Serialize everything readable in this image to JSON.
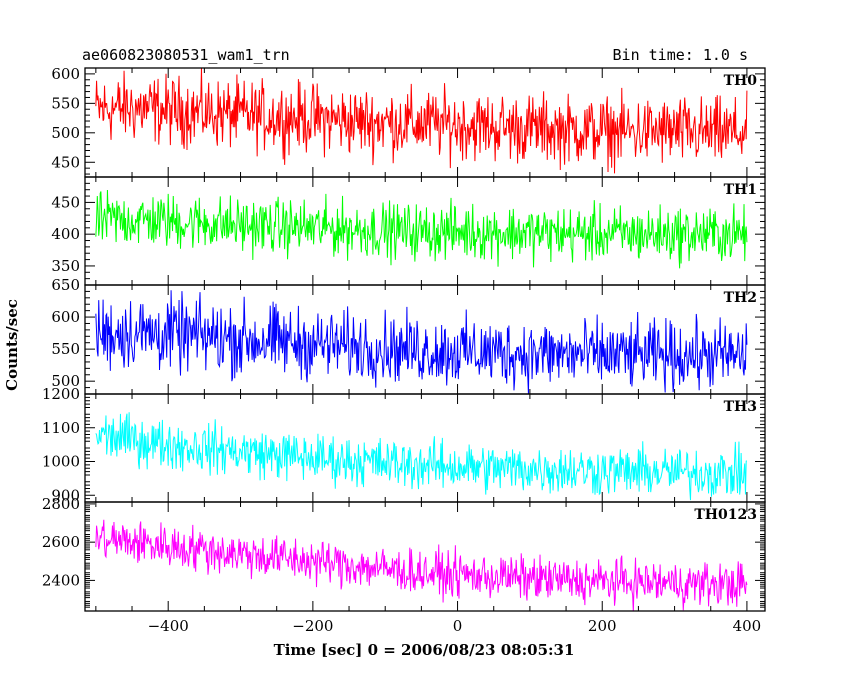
{
  "header": {
    "left": "ae060823080531_wam1_trn",
    "right": "Bin time: 1.0 s"
  },
  "chart_data": {
    "type": "line",
    "xlabel": "Time [sec] 0 = 2006/08/23 08:05:31",
    "ylabel": "Counts/sec",
    "xlim": [
      -515,
      425
    ],
    "xticks": [
      -400,
      -200,
      0,
      200,
      400
    ],
    "series": [
      {
        "name": "TH0",
        "color": "#ff0000",
        "ylim": [
          425,
          610
        ],
        "yticks": [
          450,
          500,
          550,
          600
        ],
        "x": [
          -500,
          -450,
          -400,
          -350,
          -300,
          -250,
          -200,
          -150,
          -100,
          -50,
          0,
          50,
          100,
          150,
          200,
          250,
          300,
          350,
          400
        ],
        "mean": [
          540,
          542,
          538,
          535,
          530,
          527,
          525,
          520,
          518,
          515,
          514,
          510,
          508,
          505,
          503,
          502,
          502,
          500,
          500
        ],
        "amp": [
          60,
          60,
          60,
          60,
          60,
          60,
          60,
          60,
          60,
          60,
          60,
          60,
          60,
          60,
          60,
          60,
          60,
          60,
          60
        ]
      },
      {
        "name": "TH1",
        "color": "#00ff00",
        "ylim": [
          320,
          490
        ],
        "yticks": [
          350,
          400,
          450
        ],
        "x": [
          -500,
          -450,
          -400,
          -350,
          -300,
          -250,
          -200,
          -150,
          -100,
          -50,
          0,
          50,
          100,
          150,
          200,
          250,
          300,
          350,
          400
        ],
        "mean": [
          422,
          423,
          420,
          418,
          414,
          412,
          410,
          408,
          406,
          404,
          404,
          403,
          402,
          401,
          400,
          400,
          400,
          400,
          400
        ],
        "amp": [
          45,
          45,
          45,
          45,
          45,
          45,
          45,
          45,
          45,
          45,
          45,
          45,
          45,
          45,
          45,
          45,
          45,
          45,
          45
        ]
      },
      {
        "name": "TH2",
        "color": "#0000ff",
        "ylim": [
          480,
          650
        ],
        "yticks": [
          500,
          550,
          600,
          650
        ],
        "x": [
          -500,
          -450,
          -400,
          -350,
          -300,
          -250,
          -200,
          -150,
          -100,
          -50,
          0,
          50,
          100,
          150,
          200,
          250,
          300,
          350,
          400
        ],
        "mean": [
          575,
          576,
          573,
          570,
          565,
          562,
          558,
          555,
          552,
          548,
          546,
          545,
          543,
          542,
          541,
          540,
          540,
          540,
          540
        ],
        "amp": [
          60,
          60,
          60,
          60,
          60,
          58,
          55,
          55,
          55,
          55,
          55,
          55,
          55,
          55,
          55,
          55,
          55,
          55,
          55
        ]
      },
      {
        "name": "TH3",
        "color": "#00ffff",
        "ylim": [
          880,
          1200
        ],
        "yticks": [
          900,
          1000,
          1100,
          1200
        ],
        "x": [
          -500,
          -450,
          -400,
          -350,
          -300,
          -250,
          -200,
          -150,
          -100,
          -50,
          0,
          50,
          100,
          150,
          200,
          250,
          300,
          350,
          400
        ],
        "mean": [
          1080,
          1065,
          1050,
          1040,
          1030,
          1020,
          1010,
          1003,
          995,
          990,
          985,
          980,
          978,
          975,
          972,
          970,
          968,
          966,
          965
        ],
        "amp": [
          75,
          75,
          75,
          75,
          75,
          75,
          75,
          75,
          75,
          75,
          75,
          75,
          75,
          75,
          75,
          75,
          75,
          75,
          75
        ]
      },
      {
        "name": "TH0123",
        "color": "#ff00ff",
        "ylim": [
          2240,
          2810
        ],
        "yticks": [
          2400,
          2600,
          2800
        ],
        "x": [
          -500,
          -450,
          -400,
          -350,
          -300,
          -250,
          -200,
          -150,
          -100,
          -50,
          0,
          50,
          100,
          150,
          200,
          250,
          300,
          350,
          400
        ],
        "mean": [
          2620,
          2600,
          2580,
          2560,
          2540,
          2520,
          2500,
          2480,
          2460,
          2440,
          2430,
          2420,
          2410,
          2400,
          2395,
          2390,
          2385,
          2380,
          2380
        ],
        "amp": [
          120,
          120,
          120,
          120,
          120,
          120,
          120,
          120,
          120,
          120,
          120,
          120,
          120,
          120,
          120,
          120,
          120,
          120,
          120
        ]
      }
    ],
    "grid": false
  }
}
